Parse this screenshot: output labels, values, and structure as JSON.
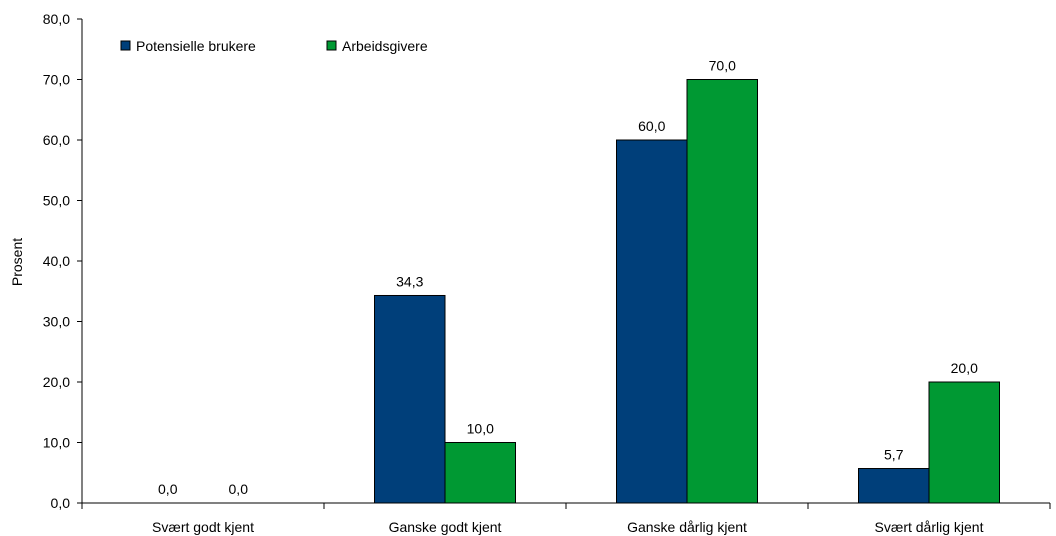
{
  "chart_data": {
    "type": "bar",
    "title": "",
    "xlabel": "",
    "ylabel": "Prosent",
    "ylim": [
      0,
      80
    ],
    "yticks": [
      "0,0",
      "10,0",
      "20,0",
      "30,0",
      "40,0",
      "50,0",
      "60,0",
      "70,0",
      "80,0"
    ],
    "grid": false,
    "legend_position": "top-left",
    "categories": [
      "Svært godt kjent",
      "Ganske godt kjent",
      "Ganske dårlig kjent",
      "Svært dårlig kjent"
    ],
    "series": [
      {
        "name": "Potensielle brukere",
        "color": "#003f7a",
        "values": [
          0.0,
          34.3,
          60.0,
          5.7
        ],
        "labels": [
          "0,0",
          "34,3",
          "60,0",
          "5,7"
        ]
      },
      {
        "name": "Arbeidsgivere",
        "color": "#009933",
        "values": [
          0.0,
          10.0,
          70.0,
          20.0
        ],
        "labels": [
          "0,0",
          "10,0",
          "70,0",
          "20,0"
        ]
      }
    ]
  }
}
